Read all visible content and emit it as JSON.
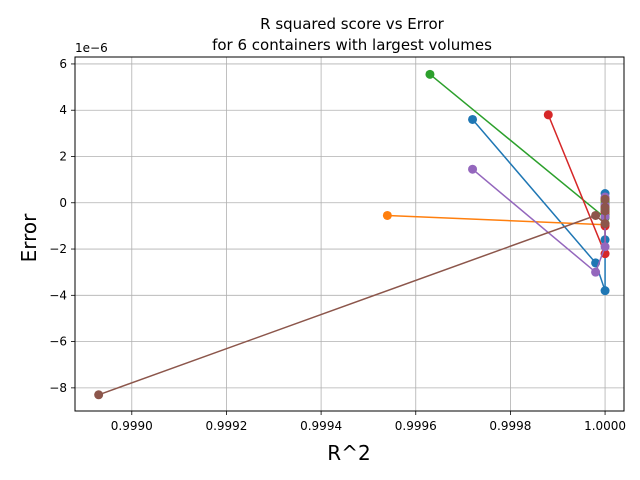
{
  "chart_data": {
    "type": "line",
    "title_line1": "R squared score vs Error",
    "title_line2": "for 6 containers with largest volumes",
    "xlabel": "R^2",
    "ylabel": "Error",
    "y_offset_label": "1e−6",
    "xlim": [
      0.99888,
      1.00004
    ],
    "ylim": [
      -9.0,
      6.3
    ],
    "x_ticks": [
      0.999,
      0.9992,
      0.9994,
      0.9996,
      0.9998,
      1.0
    ],
    "x_tick_labels": [
      "0.9990",
      "0.9992",
      "0.9994",
      "0.9996",
      "0.9998",
      "1.0000"
    ],
    "y_ticks": [
      -8,
      -6,
      -4,
      -2,
      0,
      2,
      4,
      6
    ],
    "y_tick_labels": [
      "−8",
      "−6",
      "−4",
      "−2",
      "0",
      "2",
      "4",
      "6"
    ],
    "y_unit_scale": 1e-06,
    "grid": true,
    "series": [
      {
        "color": "#1f77b4",
        "points": [
          [
            0.99972,
            3.6
          ],
          [
            0.99998,
            -2.6
          ],
          [
            1.0,
            -3.8
          ],
          [
            1.0,
            -1.6
          ],
          [
            1.0,
            0.4
          ],
          [
            1.0,
            -0.3
          ]
        ]
      },
      {
        "color": "#ff7f0e",
        "points": [
          [
            0.99954,
            -0.55
          ],
          [
            1.0,
            -0.95
          ],
          [
            1.0,
            -0.6
          ],
          [
            1.0,
            -0.2
          ],
          [
            1.0,
            0.05
          ],
          [
            1.0,
            -0.4
          ]
        ]
      },
      {
        "color": "#2ca02c",
        "points": [
          [
            0.99963,
            5.55
          ],
          [
            1.0,
            -0.65
          ],
          [
            1.0,
            -0.25
          ],
          [
            1.0,
            0.1
          ],
          [
            1.0,
            -0.5
          ],
          [
            1.0,
            -0.05
          ]
        ]
      },
      {
        "color": "#d62728",
        "points": [
          [
            0.99988,
            3.8
          ],
          [
            1.0,
            -2.2
          ],
          [
            1.0,
            -1.0
          ],
          [
            1.0,
            0.2
          ],
          [
            1.0,
            -0.4
          ],
          [
            1.0,
            -0.15
          ]
        ]
      },
      {
        "color": "#9467bd",
        "points": [
          [
            0.99972,
            1.45
          ],
          [
            0.99998,
            -3.0
          ],
          [
            1.0,
            -1.9
          ],
          [
            1.0,
            -0.6
          ],
          [
            1.0,
            0.25
          ],
          [
            1.0,
            -0.1
          ]
        ]
      },
      {
        "color": "#8c564b",
        "points": [
          [
            0.99893,
            -8.3
          ],
          [
            0.99998,
            -0.55
          ],
          [
            1.0,
            -0.9
          ],
          [
            1.0,
            -0.35
          ],
          [
            1.0,
            0.15
          ],
          [
            1.0,
            -0.2
          ]
        ]
      }
    ]
  }
}
